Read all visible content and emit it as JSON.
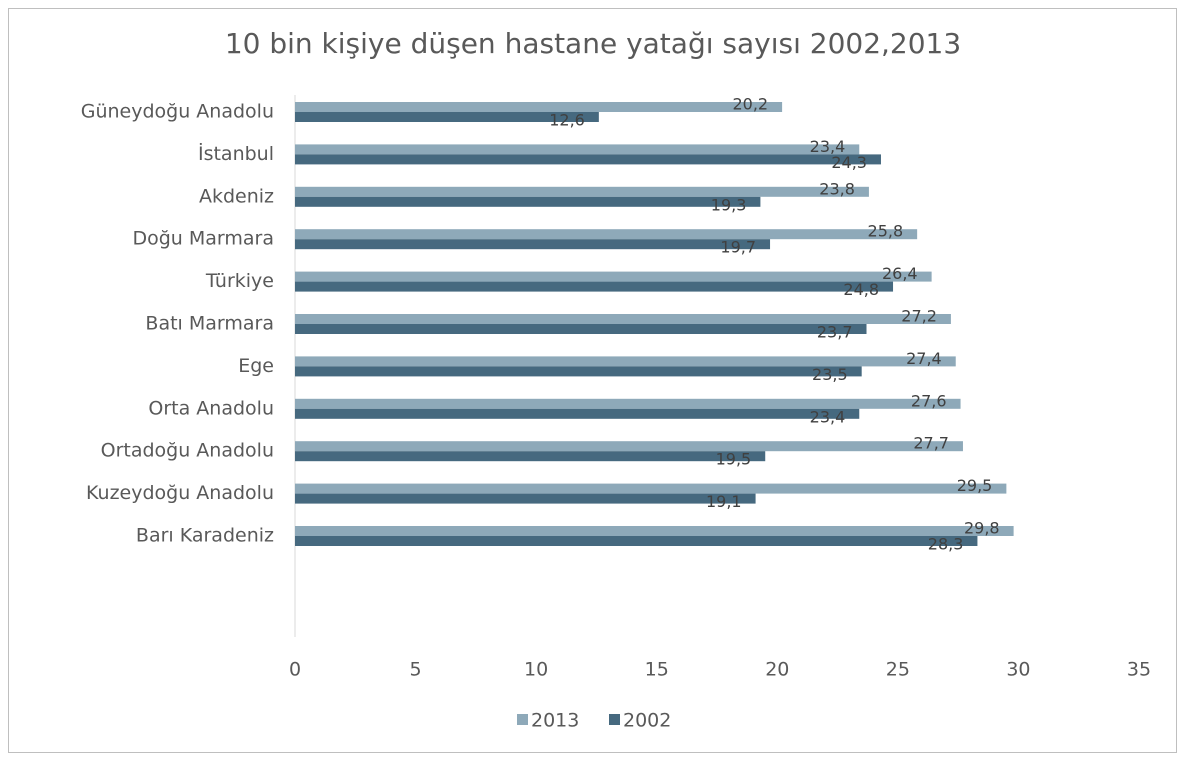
{
  "chart_data": {
    "type": "bar",
    "orientation": "horizontal",
    "title": "10 bin kişiye düşen hastane yatağı sayısı 2002,2013",
    "categories": [
      "Güneydoğu Anadolu",
      "İstanbul",
      "Akdeniz",
      "Doğu Marmara",
      "Türkiye",
      "Batı Marmara",
      "Ege",
      "Orta Anadolu",
      "Ortadoğu Anadolu",
      "Kuzeydoğu Anadolu",
      "Barı Karadeniz"
    ],
    "series": [
      {
        "name": "2013",
        "color": "#8ea9b9",
        "values": [
          20.2,
          23.4,
          23.8,
          25.8,
          26.4,
          27.2,
          27.4,
          27.6,
          27.7,
          29.5,
          29.8
        ],
        "value_labels": [
          "20,2",
          "23,4",
          "23,8",
          "25,8",
          "26,4",
          "27,2",
          "27,4",
          "27,6",
          "27,7",
          "29,5",
          "29,8"
        ]
      },
      {
        "name": "2002",
        "color": "#46697f",
        "values": [
          12.6,
          24.3,
          19.3,
          19.7,
          24.8,
          23.7,
          23.5,
          23.4,
          19.5,
          19.1,
          28.3
        ],
        "value_labels": [
          "12,6",
          "24,3",
          "19,3",
          "19,7",
          "24,8",
          "23,7",
          "23,5",
          "23,4",
          "19,5",
          "19,1",
          "28,3"
        ]
      }
    ],
    "xlim": [
      0,
      35
    ],
    "xticks": [
      0,
      5,
      10,
      15,
      20,
      25,
      30,
      35
    ],
    "legend": "bottom"
  }
}
